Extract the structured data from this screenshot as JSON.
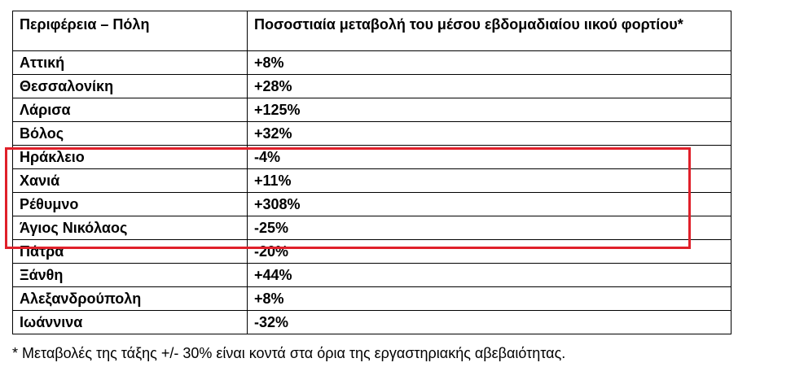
{
  "table": {
    "headers": [
      "Περιφέρεια – Πόλη",
      "Ποσοστιαία μεταβολή του μέσου εβδομαδιαίου ιικού φορτίου*"
    ],
    "rows": [
      {
        "city": "Αττική",
        "change": "+8%"
      },
      {
        "city": "Θεσσαλονίκη",
        "change": "+28%"
      },
      {
        "city": "Λάρισα",
        "change": "+125%"
      },
      {
        "city": "Βόλος",
        "change": "+32%"
      },
      {
        "city": "Ηράκλειο",
        "change": "-4%"
      },
      {
        "city": "Χανιά",
        "change": "+11%"
      },
      {
        "city": "Ρέθυμνο",
        "change": "+308%"
      },
      {
        "city": "Άγιος Νικόλαος",
        "change": "-25%"
      },
      {
        "city": "Πάτρα",
        "change": "-20%"
      },
      {
        "city": "Ξάνθη",
        "change": "+44%"
      },
      {
        "city": "Αλεξανδρούπολη",
        "change": "+8%"
      },
      {
        "city": "Ιωάννινα",
        "change": "-32%"
      }
    ]
  },
  "highlight": {
    "color": "#e0202a"
  },
  "footnote": "* Μεταβολές της τάξης +/- 30% είναι κοντά στα όρια της εργαστηριακής αβεβαιότητας."
}
